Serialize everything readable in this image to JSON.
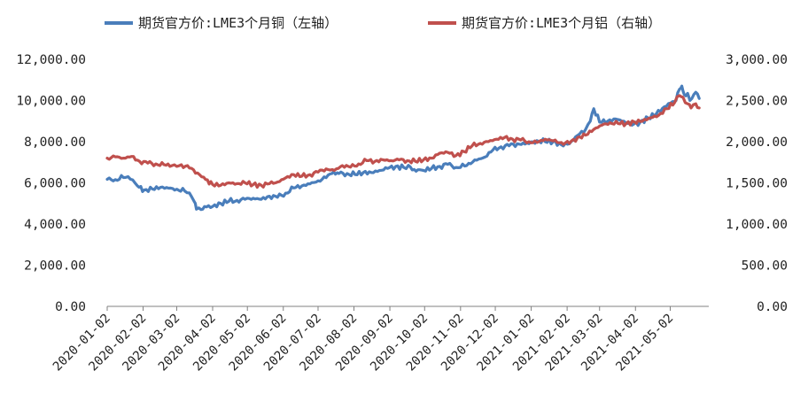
{
  "chart_data": {
    "type": "line",
    "title": "",
    "xlabel": "",
    "ylabel_left": "",
    "ylabel_right": "",
    "legend_position": "top",
    "grid": false,
    "ylim_left": [
      0,
      12000
    ],
    "ylim_right": [
      0,
      3000
    ],
    "left_ticks": [
      "0.00",
      "2,000.00",
      "4,000.00",
      "6,000.00",
      "8,000.00",
      "10,000.00",
      "12,000.00"
    ],
    "right_ticks": [
      "0.00",
      "500.00",
      "1,000.00",
      "1,500.00",
      "2,000.00",
      "2,500.00",
      "3,000.00"
    ],
    "x_ticks": [
      "2020-01-02",
      "2020-02-02",
      "2020-03-02",
      "2020-04-02",
      "2020-05-02",
      "2020-06-02",
      "2020-07-02",
      "2020-08-02",
      "2020-09-02",
      "2020-10-02",
      "2020-11-02",
      "2020-12-02",
      "2021-01-02",
      "2021-02-02",
      "2021-03-02",
      "2021-04-02",
      "2021-05-02"
    ],
    "series": [
      {
        "name": "期货官方价:LME3个月铜（左轴）",
        "axis": "left",
        "color": "#4a7ebb",
        "points": [
          [
            "2020-01-02",
            6170
          ],
          [
            "2020-01-09",
            6160
          ],
          [
            "2020-01-16",
            6260
          ],
          [
            "2020-01-20",
            6300
          ],
          [
            "2020-01-24",
            6140
          ],
          [
            "2020-01-28",
            5860
          ],
          [
            "2020-02-03",
            5650
          ],
          [
            "2020-02-10",
            5700
          ],
          [
            "2020-02-17",
            5780
          ],
          [
            "2020-02-24",
            5740
          ],
          [
            "2020-03-02",
            5690
          ],
          [
            "2020-03-09",
            5600
          ],
          [
            "2020-03-13",
            5510
          ],
          [
            "2020-03-17",
            5100
          ],
          [
            "2020-03-19",
            4720
          ],
          [
            "2020-03-23",
            4700
          ],
          [
            "2020-03-26",
            4850
          ],
          [
            "2020-04-02",
            4850
          ],
          [
            "2020-04-09",
            5000
          ],
          [
            "2020-04-16",
            5100
          ],
          [
            "2020-04-23",
            5150
          ],
          [
            "2020-04-30",
            5200
          ],
          [
            "2020-05-07",
            5250
          ],
          [
            "2020-05-14",
            5200
          ],
          [
            "2020-05-21",
            5350
          ],
          [
            "2020-05-28",
            5300
          ],
          [
            "2020-06-04",
            5500
          ],
          [
            "2020-06-11",
            5750
          ],
          [
            "2020-06-18",
            5850
          ],
          [
            "2020-06-25",
            5950
          ],
          [
            "2020-07-02",
            6100
          ],
          [
            "2020-07-09",
            6250
          ],
          [
            "2020-07-14",
            6450
          ],
          [
            "2020-07-20",
            6450
          ],
          [
            "2020-07-27",
            6450
          ],
          [
            "2020-08-03",
            6400
          ],
          [
            "2020-08-10",
            6500
          ],
          [
            "2020-08-17",
            6500
          ],
          [
            "2020-08-24",
            6600
          ],
          [
            "2020-08-31",
            6700
          ],
          [
            "2020-09-07",
            6800
          ],
          [
            "2020-09-14",
            6750
          ],
          [
            "2020-09-18",
            6850
          ],
          [
            "2020-09-23",
            6650
          ],
          [
            "2020-10-01",
            6600
          ],
          [
            "2020-10-08",
            6700
          ],
          [
            "2020-10-15",
            6800
          ],
          [
            "2020-10-22",
            6900
          ],
          [
            "2020-10-29",
            6750
          ],
          [
            "2020-11-02",
            6750
          ],
          [
            "2020-11-09",
            6950
          ],
          [
            "2020-11-16",
            7100
          ],
          [
            "2020-11-23",
            7250
          ],
          [
            "2020-11-30",
            7600
          ],
          [
            "2020-12-07",
            7750
          ],
          [
            "2020-12-14",
            7800
          ],
          [
            "2020-12-21",
            7900
          ],
          [
            "2020-12-31",
            7900
          ],
          [
            "2021-01-07",
            8050
          ],
          [
            "2021-01-14",
            8000
          ],
          [
            "2021-01-21",
            8000
          ],
          [
            "2021-01-28",
            7850
          ],
          [
            "2021-02-04",
            7900
          ],
          [
            "2021-02-11",
            8300
          ],
          [
            "2021-02-18",
            8600
          ],
          [
            "2021-02-22",
            9000
          ],
          [
            "2021-02-25",
            9600
          ],
          [
            "2021-03-02",
            8950
          ],
          [
            "2021-03-09",
            9000
          ],
          [
            "2021-03-16",
            9100
          ],
          [
            "2021-03-23",
            9000
          ],
          [
            "2021-03-30",
            8800
          ],
          [
            "2021-04-06",
            8950
          ],
          [
            "2021-04-13",
            9150
          ],
          [
            "2021-04-20",
            9350
          ],
          [
            "2021-04-27",
            9700
          ],
          [
            "2021-05-04",
            9950
          ],
          [
            "2021-05-07",
            10000
          ],
          [
            "2021-05-10",
            10550
          ],
          [
            "2021-05-12",
            10700
          ],
          [
            "2021-05-14",
            10300
          ],
          [
            "2021-05-17",
            10350
          ],
          [
            "2021-05-19",
            10000
          ],
          [
            "2021-05-24",
            10400
          ],
          [
            "2021-05-27",
            10100
          ]
        ]
      },
      {
        "name": "期货官方价:LME3个月铝（右轴）",
        "axis": "right",
        "color": "#c0504d",
        "points": [
          [
            "2020-01-02",
            1800
          ],
          [
            "2020-01-09",
            1815
          ],
          [
            "2020-01-16",
            1800
          ],
          [
            "2020-01-23",
            1820
          ],
          [
            "2020-01-30",
            1760
          ],
          [
            "2020-02-06",
            1740
          ],
          [
            "2020-02-13",
            1730
          ],
          [
            "2020-02-20",
            1720
          ],
          [
            "2020-02-27",
            1710
          ],
          [
            "2020-03-02",
            1700
          ],
          [
            "2020-03-06",
            1720
          ],
          [
            "2020-03-13",
            1680
          ],
          [
            "2020-03-20",
            1620
          ],
          [
            "2020-03-27",
            1540
          ],
          [
            "2020-04-02",
            1480
          ],
          [
            "2020-04-09",
            1470
          ],
          [
            "2020-04-16",
            1500
          ],
          [
            "2020-04-23",
            1490
          ],
          [
            "2020-04-30",
            1500
          ],
          [
            "2020-05-07",
            1480
          ],
          [
            "2020-05-14",
            1470
          ],
          [
            "2020-05-21",
            1490
          ],
          [
            "2020-05-28",
            1510
          ],
          [
            "2020-06-04",
            1560
          ],
          [
            "2020-06-11",
            1600
          ],
          [
            "2020-06-18",
            1580
          ],
          [
            "2020-06-25",
            1600
          ],
          [
            "2020-07-02",
            1630
          ],
          [
            "2020-07-09",
            1670
          ],
          [
            "2020-07-16",
            1650
          ],
          [
            "2020-07-23",
            1710
          ],
          [
            "2020-07-30",
            1690
          ],
          [
            "2020-08-06",
            1730
          ],
          [
            "2020-08-13",
            1770
          ],
          [
            "2020-08-20",
            1760
          ],
          [
            "2020-08-27",
            1780
          ],
          [
            "2020-09-03",
            1770
          ],
          [
            "2020-09-10",
            1780
          ],
          [
            "2020-09-17",
            1770
          ],
          [
            "2020-09-24",
            1760
          ],
          [
            "2020-10-01",
            1780
          ],
          [
            "2020-10-08",
            1800
          ],
          [
            "2020-10-15",
            1860
          ],
          [
            "2020-10-22",
            1870
          ],
          [
            "2020-10-29",
            1830
          ],
          [
            "2020-11-05",
            1880
          ],
          [
            "2020-11-12",
            1950
          ],
          [
            "2020-11-19",
            1980
          ],
          [
            "2020-11-26",
            2000
          ],
          [
            "2020-12-03",
            2030
          ],
          [
            "2020-12-10",
            2050
          ],
          [
            "2020-12-17",
            2030
          ],
          [
            "2020-12-24",
            2020
          ],
          [
            "2020-12-31",
            2000
          ],
          [
            "2021-01-07",
            1990
          ],
          [
            "2021-01-14",
            2030
          ],
          [
            "2021-01-21",
            2010
          ],
          [
            "2021-01-28",
            1990
          ],
          [
            "2021-02-04",
            1980
          ],
          [
            "2021-02-11",
            2050
          ],
          [
            "2021-02-18",
            2080
          ],
          [
            "2021-02-25",
            2150
          ],
          [
            "2021-03-04",
            2200
          ],
          [
            "2021-03-11",
            2230
          ],
          [
            "2021-03-18",
            2220
          ],
          [
            "2021-03-25",
            2220
          ],
          [
            "2021-04-01",
            2240
          ],
          [
            "2021-04-08",
            2250
          ],
          [
            "2021-04-15",
            2290
          ],
          [
            "2021-04-22",
            2320
          ],
          [
            "2021-04-29",
            2400
          ],
          [
            "2021-05-06",
            2480
          ],
          [
            "2021-05-10",
            2560
          ],
          [
            "2021-05-13",
            2540
          ],
          [
            "2021-05-17",
            2460
          ],
          [
            "2021-05-20",
            2410
          ],
          [
            "2021-05-24",
            2460
          ],
          [
            "2021-05-27",
            2410
          ]
        ]
      }
    ]
  }
}
